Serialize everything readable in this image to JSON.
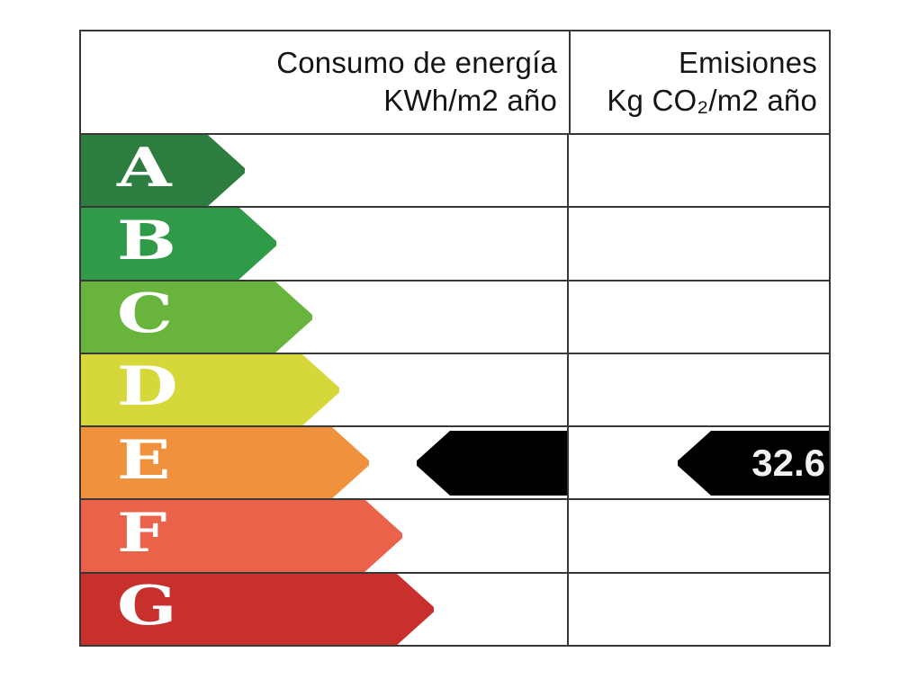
{
  "header": {
    "consumption": {
      "line1": "Consumo de energía",
      "line2": "KWh/m2 año"
    },
    "emissions": {
      "line1": "Emisiones",
      "line2": "Kg CO₂/m2 año"
    }
  },
  "colors": {
    "table_border": "#383838",
    "marker_fill": "#000000",
    "marker_text": "#f2f2f2",
    "letter_text": "#ffffff"
  },
  "chart_data": {
    "type": "bar",
    "title": "Consumo de energía KWh/m2 año / Emisiones Kg CO₂/m2 año",
    "categories": [
      "A",
      "B",
      "C",
      "D",
      "E",
      "F",
      "G"
    ],
    "ratings": [
      {
        "letter": "A",
        "color": "#2e7d40",
        "arrow_width": 182
      },
      {
        "letter": "B",
        "color": "#2f9a47",
        "arrow_width": 217
      },
      {
        "letter": "C",
        "color": "#68b43c",
        "arrow_width": 257
      },
      {
        "letter": "D",
        "color": "#d6d739",
        "arrow_width": 287
      },
      {
        "letter": "E",
        "color": "#f0913e",
        "arrow_width": 320
      },
      {
        "letter": "F",
        "color": "#e96249",
        "arrow_width": 357
      },
      {
        "letter": "G",
        "color": "#c8302e",
        "arrow_width": 392
      }
    ],
    "markers": {
      "consumption": {
        "rating": "E",
        "value": null
      },
      "emissions": {
        "rating": "E",
        "value": "32.6"
      }
    },
    "legend_position": "none",
    "grid": "table-rules"
  }
}
